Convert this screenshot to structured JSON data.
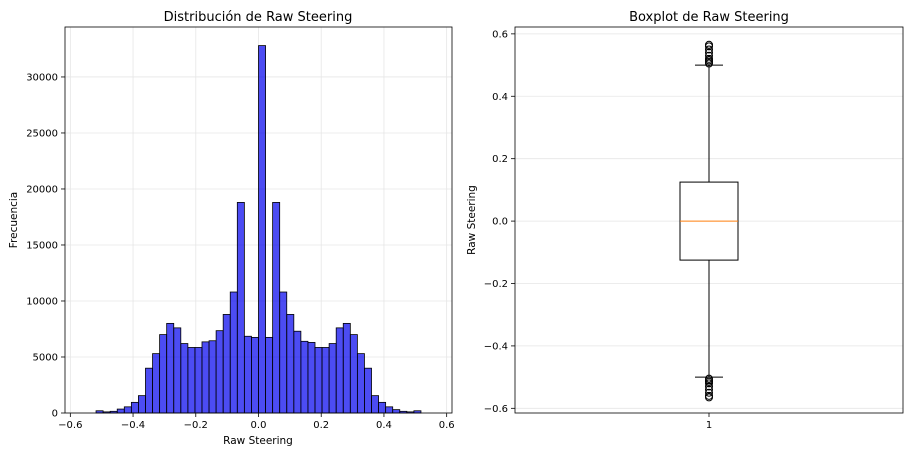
{
  "chart_data": [
    {
      "type": "bar",
      "title": "Distribución de Raw Steering",
      "xlabel": "Raw Steering",
      "ylabel": "Frecuencia",
      "xlim": [
        -0.617,
        0.617
      ],
      "ylim": [
        0,
        34460
      ],
      "xticks": [
        -0.6,
        -0.4,
        -0.2,
        0.0,
        0.2,
        0.4,
        0.6
      ],
      "xtick_labels": [
        "−0.6",
        "−0.4",
        "−0.2",
        "0.0",
        "0.2",
        "0.4",
        "0.6"
      ],
      "yticks": [
        0,
        5000,
        10000,
        15000,
        20000,
        25000,
        30000
      ],
      "ytick_labels": [
        "0",
        "5000",
        "10000",
        "15000",
        "20000",
        "25000",
        "30000"
      ],
      "grid": true,
      "bar_color": "#0000ee",
      "bin_range": [
        -0.518,
        0.518
      ],
      "values": [
        200,
        100,
        150,
        350,
        550,
        950,
        1550,
        4000,
        5300,
        7000,
        8000,
        7600,
        6200,
        5850,
        5850,
        6350,
        6450,
        7350,
        8800,
        10800,
        18800,
        6850,
        6750,
        32800,
        6750,
        18800,
        10800,
        8800,
        7300,
        6400,
        6300,
        5850,
        5850,
        6200,
        7600,
        8000,
        7000,
        5300,
        4000,
        1550,
        950,
        550,
        300,
        150,
        100,
        200
      ]
    },
    {
      "type": "box",
      "title": "Boxplot de Raw Steering",
      "ylabel": "Raw Steering",
      "ylim": [
        -0.615,
        0.622
      ],
      "yticks": [
        -0.6,
        -0.4,
        -0.2,
        0.0,
        0.2,
        0.4,
        0.6
      ],
      "ytick_labels": [
        "−0.6",
        "−0.4",
        "−0.2",
        "0.0",
        "0.2",
        "0.4",
        "0.6"
      ],
      "xtick_labels": [
        "1"
      ],
      "grid": true,
      "median_color": "#ff7f0e",
      "stats": {
        "q1": -0.125,
        "median": 0.0,
        "q3": 0.125,
        "whisker_low": -0.5,
        "whisker_high": 0.5
      },
      "fliers": [
        0.505,
        0.51,
        0.515,
        0.52,
        0.53,
        0.54,
        0.55,
        0.56,
        0.565,
        -0.505,
        -0.51,
        -0.515,
        -0.52,
        -0.53,
        -0.54,
        -0.55,
        -0.56,
        -0.565
      ]
    }
  ]
}
